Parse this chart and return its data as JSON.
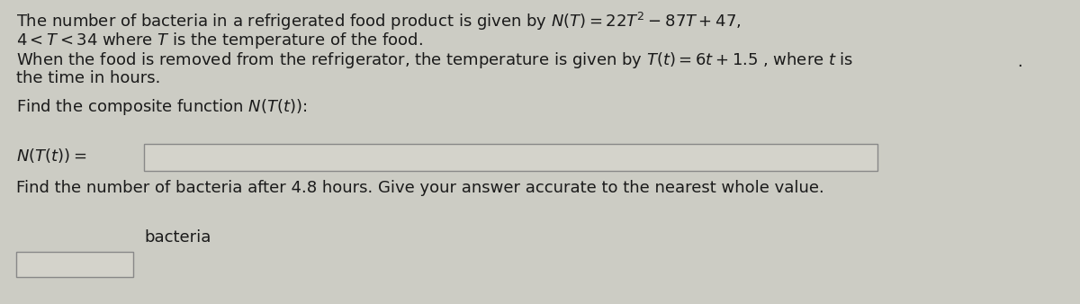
{
  "bg_color": "#ccccc4",
  "text_color": "#1a1a1a",
  "line1": "The number of bacteria in a refrigerated food product is given by $N(T) = 22T^2 - 87T + 47,$",
  "line2": "$4 < T < 34$ where $T$ is the temperature of the food.",
  "line3": "When the food is removed from the refrigerator, the temperature is given by $T(t) = 6t + 1.5$ , where $t$ is",
  "line4": "the time in hours.",
  "line5": "Find the composite function $N(T(t))$:",
  "line6_label": "$N(T(t)) =$",
  "line7": "Find the number of bacteria after 4.8 hours. Give your answer accurate to the nearest whole value.",
  "line8": "bacteria",
  "font_size": 13.0,
  "box1_color": "#d4d3cb",
  "box2_color": "#d4d3cb",
  "box_edge_color": "#888888"
}
